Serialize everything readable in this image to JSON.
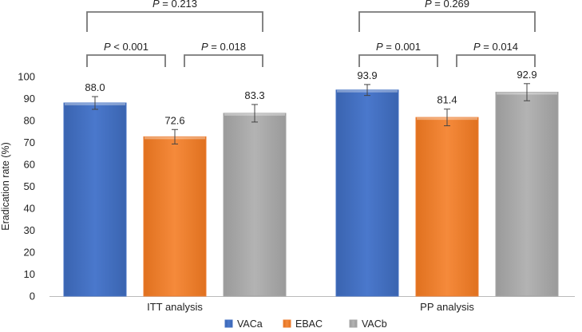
{
  "chart_data": {
    "type": "bar",
    "ylabel": "Eradication rate (%)",
    "xlabel": "",
    "ylim": [
      0,
      100
    ],
    "yticks": [
      0,
      10,
      20,
      30,
      40,
      50,
      60,
      70,
      80,
      90,
      100
    ],
    "categories": [
      "ITT analysis",
      "PP analysis"
    ],
    "series": [
      {
        "name": "VACa",
        "color": "#4472C4",
        "values": [
          88.0,
          93.9
        ],
        "labels": [
          "88.0",
          "93.9"
        ],
        "errors": [
          2.9,
          2.5
        ]
      },
      {
        "name": "EBAC",
        "color": "#ED7D31",
        "values": [
          72.6,
          81.4
        ],
        "labels": [
          "72.6",
          "81.4"
        ],
        "errors": [
          3.3,
          3.8
        ]
      },
      {
        "name": "VACb",
        "color": "#A5A5A5",
        "values": [
          83.3,
          92.9
        ],
        "labels": [
          "83.3",
          "92.9"
        ],
        "errors": [
          4.0,
          3.9
        ]
      }
    ],
    "comparisons": [
      {
        "category": 0,
        "from": 0,
        "to": 1,
        "level": 1,
        "p_prefix": "P",
        "p_value": " < 0.001"
      },
      {
        "category": 0,
        "from": 1,
        "to": 2,
        "level": 1,
        "p_prefix": "P",
        "p_value": " = 0.018"
      },
      {
        "category": 0,
        "from": 0,
        "to": 2,
        "level": 2,
        "p_prefix": "P",
        "p_value": " = 0.213"
      },
      {
        "category": 1,
        "from": 0,
        "to": 1,
        "level": 1,
        "p_prefix": "P",
        "p_value": " = 0.001"
      },
      {
        "category": 1,
        "from": 1,
        "to": 2,
        "level": 1,
        "p_prefix": "P",
        "p_value": " = 0.014"
      },
      {
        "category": 1,
        "from": 0,
        "to": 2,
        "level": 2,
        "p_prefix": "P",
        "p_value": " = 0.269"
      }
    ],
    "legend": {
      "position": "bottom",
      "entries": [
        "VACa",
        "EBAC",
        "VACb"
      ]
    }
  }
}
